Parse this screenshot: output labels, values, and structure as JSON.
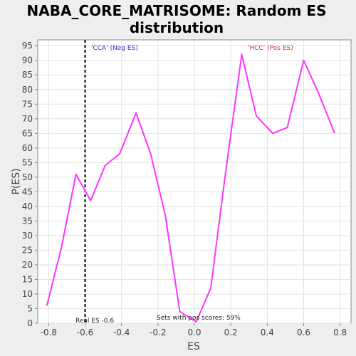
{
  "chart_data": {
    "type": "line",
    "title_line1": "NABA_CORE_MATRISOME: Random ES",
    "title_line2": "distribution",
    "xlabel": "ES",
    "ylabel": "P(ES)",
    "xlim": [
      -0.86,
      0.86
    ],
    "ylim": [
      0,
      97
    ],
    "x_ticks": [
      "-0.8",
      "-0.6",
      "-0.4",
      "-0.2",
      "0.0",
      "0.2",
      "0.4",
      "0.6",
      "0.8"
    ],
    "y_ticks": [
      "0",
      "5",
      "10",
      "15",
      "20",
      "25",
      "30",
      "35",
      "40",
      "45",
      "50",
      "55",
      "60",
      "65",
      "70",
      "75",
      "80",
      "85",
      "90",
      "95"
    ],
    "grid": true,
    "series": [
      {
        "color": "#ff33ff",
        "points": [
          [
            -0.81,
            6
          ],
          [
            -0.73,
            26
          ],
          [
            -0.65,
            51
          ],
          [
            -0.57,
            42
          ],
          [
            -0.49,
            54
          ],
          [
            -0.41,
            58
          ],
          [
            -0.32,
            72
          ],
          [
            -0.24,
            58
          ],
          [
            -0.16,
            37
          ],
          [
            -0.08,
            4
          ],
          [
            0.01,
            0.5
          ],
          [
            0.09,
            12
          ],
          [
            0.17,
            51
          ],
          [
            0.26,
            92
          ],
          [
            0.34,
            71
          ],
          [
            0.43,
            65
          ],
          [
            0.51,
            67
          ],
          [
            0.6,
            90
          ],
          [
            0.68,
            79
          ],
          [
            0.77,
            65
          ]
        ]
      }
    ],
    "real_es": -0.6,
    "annotations": {
      "neg_label": "'CCA' (Neg ES)",
      "neg_color": "#3333cc",
      "pos_label": "'HCC' (Pos ES)",
      "pos_color": "#cc3333",
      "real_es_label": "Real ES -0.6",
      "pos_scores_label": "Sets with pos scores: 59%"
    }
  }
}
